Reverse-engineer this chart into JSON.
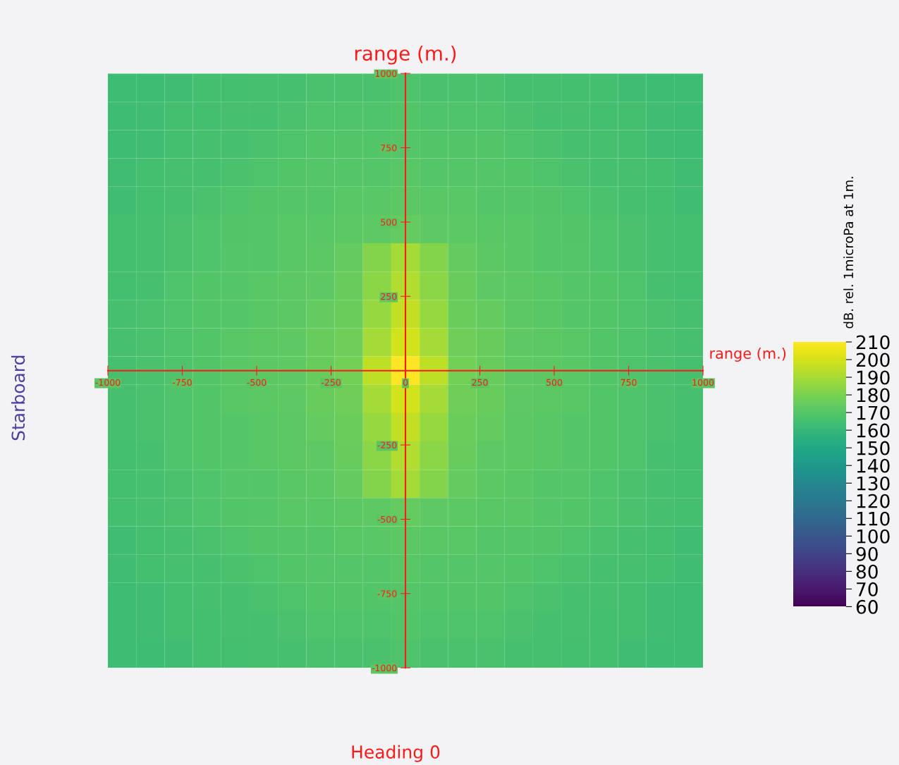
{
  "chart_data": {
    "type": "heatmap",
    "xlabel": "range (m.)",
    "ylabel": "range (m.)",
    "clabel": "dB. rel. 1microPa at 1m.",
    "annotations": [
      "Starboard",
      "Heading 0"
    ],
    "x": [
      -952.4,
      -857.1,
      -761.9,
      -666.7,
      -571.4,
      -476.2,
      -381.0,
      -285.7,
      -190.5,
      -95.2,
      0,
      95.2,
      190.5,
      285.7,
      381.0,
      476.2,
      571.4,
      666.7,
      761.9,
      857.1,
      952.4
    ],
    "y": [
      952.4,
      857.1,
      761.9,
      666.7,
      571.4,
      476.2,
      381.0,
      285.7,
      190.5,
      95.2,
      0,
      -95.2,
      -190.5,
      -285.7,
      -381.0,
      -476.2,
      -571.4,
      -666.7,
      -761.9,
      -857.1,
      -952.4
    ],
    "xlim": [
      -1000,
      1000
    ],
    "ylim": [
      -1000,
      1000
    ],
    "xticks": [
      -1000,
      -750,
      -500,
      -250,
      0,
      250,
      500,
      750,
      1000
    ],
    "yticks": [
      -1000,
      -750,
      -500,
      -250,
      250,
      500,
      750,
      1000
    ],
    "clim": [
      60,
      210
    ],
    "cticks": [
      60,
      70,
      80,
      90,
      100,
      110,
      120,
      130,
      140,
      150,
      160,
      170,
      180,
      190,
      200,
      210
    ],
    "cells": [
      [
        163,
        163,
        164,
        165,
        165,
        166,
        166,
        167,
        167,
        167,
        168,
        167,
        167,
        167,
        166,
        166,
        165,
        165,
        164,
        163,
        163
      ],
      [
        163,
        164,
        165,
        165,
        166,
        166,
        167,
        168,
        168,
        168,
        169,
        168,
        168,
        168,
        167,
        166,
        166,
        165,
        165,
        164,
        163
      ],
      [
        163,
        164,
        165,
        166,
        166,
        167,
        168,
        169,
        169,
        169,
        170,
        169,
        169,
        169,
        168,
        167,
        166,
        166,
        165,
        164,
        163
      ],
      [
        164,
        165,
        166,
        166,
        167,
        168,
        169,
        170,
        170,
        170,
        171,
        170,
        170,
        170,
        169,
        168,
        167,
        166,
        166,
        165,
        164
      ],
      [
        164,
        165,
        166,
        167,
        168,
        169,
        170,
        170,
        171,
        171,
        172,
        171,
        171,
        170,
        170,
        169,
        168,
        167,
        166,
        165,
        164
      ],
      [
        165,
        166,
        167,
        168,
        169,
        170,
        171,
        171,
        172,
        173,
        174,
        173,
        172,
        171,
        171,
        170,
        169,
        168,
        167,
        166,
        165
      ],
      [
        165,
        166,
        167,
        168,
        170,
        170,
        171,
        172,
        174,
        182,
        190,
        182,
        174,
        172,
        171,
        170,
        170,
        168,
        167,
        166,
        165
      ],
      [
        165,
        166,
        168,
        169,
        170,
        171,
        172,
        173,
        175,
        184,
        192,
        184,
        175,
        173,
        172,
        171,
        170,
        169,
        168,
        166,
        165
      ],
      [
        166,
        167,
        168,
        169,
        170,
        171,
        172,
        174,
        176,
        186,
        196,
        186,
        176,
        174,
        172,
        171,
        170,
        169,
        168,
        167,
        166
      ],
      [
        166,
        167,
        168,
        169,
        171,
        172,
        173,
        175,
        177,
        190,
        200,
        190,
        177,
        175,
        173,
        172,
        171,
        169,
        168,
        167,
        166
      ],
      [
        166,
        167,
        168,
        169,
        171,
        172,
        173,
        175,
        178,
        195,
        210,
        195,
        178,
        175,
        173,
        172,
        171,
        169,
        168,
        167,
        166
      ],
      [
        166,
        167,
        168,
        169,
        171,
        172,
        173,
        175,
        177,
        190,
        200,
        190,
        177,
        175,
        173,
        172,
        171,
        169,
        168,
        167,
        166
      ],
      [
        166,
        167,
        168,
        169,
        170,
        171,
        172,
        174,
        176,
        186,
        196,
        186,
        176,
        174,
        172,
        171,
        170,
        169,
        168,
        167,
        166
      ],
      [
        165,
        166,
        168,
        169,
        170,
        171,
        172,
        173,
        175,
        184,
        192,
        184,
        175,
        173,
        172,
        171,
        170,
        169,
        168,
        166,
        165
      ],
      [
        165,
        166,
        167,
        168,
        170,
        170,
        171,
        172,
        174,
        182,
        190,
        182,
        174,
        172,
        171,
        170,
        170,
        168,
        167,
        166,
        165
      ],
      [
        165,
        166,
        167,
        168,
        169,
        170,
        171,
        171,
        172,
        173,
        174,
        173,
        172,
        171,
        171,
        170,
        169,
        168,
        167,
        166,
        165
      ],
      [
        164,
        165,
        166,
        167,
        168,
        169,
        170,
        170,
        171,
        171,
        172,
        171,
        171,
        170,
        170,
        169,
        168,
        167,
        166,
        165,
        164
      ],
      [
        164,
        165,
        166,
        166,
        167,
        168,
        169,
        170,
        170,
        170,
        171,
        170,
        170,
        170,
        169,
        168,
        167,
        166,
        166,
        165,
        164
      ],
      [
        163,
        164,
        165,
        166,
        166,
        167,
        168,
        169,
        169,
        169,
        170,
        169,
        169,
        169,
        168,
        167,
        166,
        166,
        165,
        164,
        163
      ],
      [
        163,
        164,
        165,
        165,
        166,
        166,
        167,
        168,
        168,
        168,
        169,
        168,
        168,
        168,
        167,
        166,
        166,
        165,
        165,
        164,
        163
      ],
      [
        163,
        163,
        164,
        165,
        165,
        166,
        166,
        167,
        167,
        167,
        168,
        167,
        167,
        167,
        166,
        166,
        165,
        165,
        164,
        163,
        163
      ]
    ]
  }
}
